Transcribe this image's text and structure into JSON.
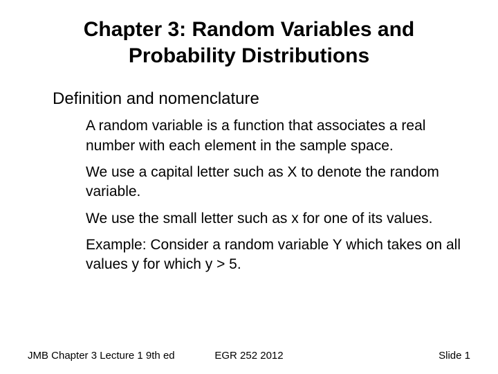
{
  "slide": {
    "title": "Chapter 3: Random Variables and Probability Distributions",
    "bullet_glyph": "",
    "heading": "Definition and nomenclature",
    "items": [
      "A random variable is a function that associates a real number with each element in the sample space.",
      "We use a capital letter such as X to denote the random variable.",
      "We use the small letter such as x for one of its values.",
      "Example: Consider a random variable Y which takes on all values y for which y > 5."
    ],
    "footer": {
      "left": "JMB Chapter 3 Lecture 1 9th ed",
      "center": "EGR 252 2012",
      "right": "Slide  1"
    },
    "colors": {
      "background": "#ffffff",
      "text": "#000000"
    },
    "fonts": {
      "title_size": 30,
      "level1_size": 24,
      "level2_size": 21,
      "footer_size": 15
    }
  }
}
